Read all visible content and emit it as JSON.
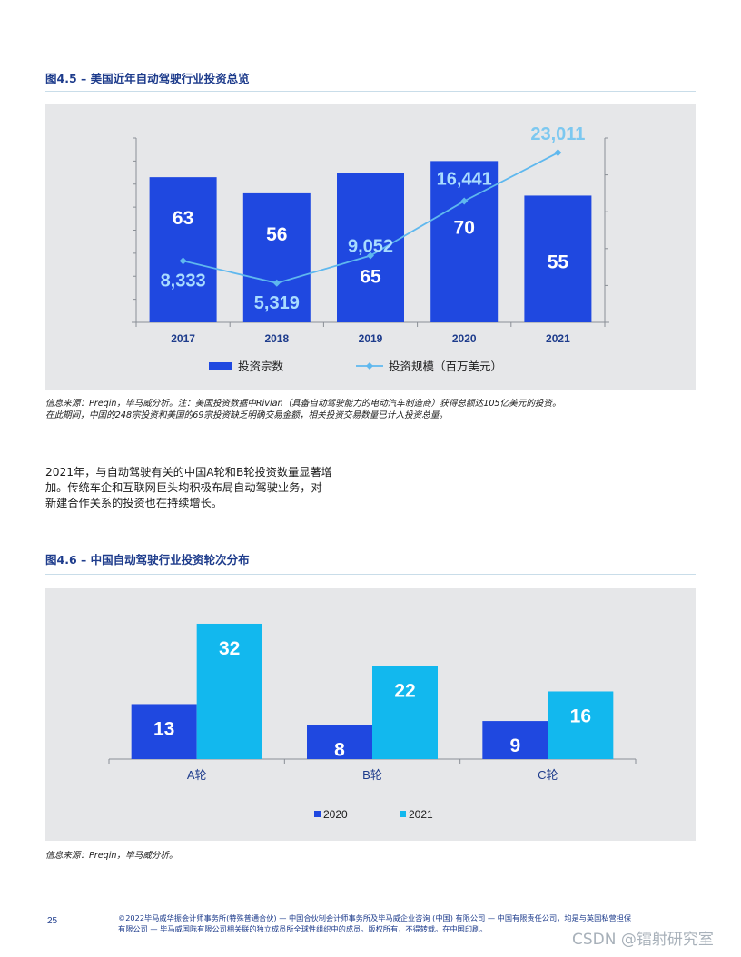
{
  "figure1": {
    "title": "图4.5 – 美国近年自动驾驶行业投资总览",
    "note_lines": [
      "信息来源：Preqin，毕马威分析。注：美国投资数据中Rivian（具备自动驾驶能力的电动汽车制造商）获得总额达105亿美元的投资。",
      "在此期间，中国的248宗投资和美国的69宗投资缺乏明确交易金额，相关投资交易数量已计入投资总量。"
    ],
    "colors": {
      "bar": "#1f48e0",
      "line": "#5fb8ee",
      "bar_label": "#ffffff",
      "line_label_on_bar": "#a9dcff",
      "line_label_above": "#7cc8f0"
    }
  },
  "body": {
    "lines": [
      "2021年，与自动驾驶有关的中国A轮和B轮投资数量显著增",
      "加。传统车企和互联网巨头均积极布局自动驾驶业务，对",
      "新建合作关系的投资也在持续增长。"
    ]
  },
  "figure2": {
    "title": "图4.6 – 中国自动驾驶行业投资轮次分布",
    "note": "信息来源：Preqin，毕马威分析。",
    "colors": {
      "s2020": "#1f48e0",
      "s2021": "#12b8ee"
    }
  },
  "footer": {
    "page": "25",
    "lines": [
      "©2022毕马威华振会计师事务所(特殊普通合伙) — 中国合伙制会计师事务所及毕马威企业咨询 (中国) 有限公司 — 中国有限责任公司，均是与英国私营担保",
      "有限公司 — 毕马威国际有限公司相关联的独立成员所全球性组织中的成员。版权所有，不得转载。在中国印刷。"
    ]
  },
  "watermark": "CSDN @镭射研究室",
  "chart_data": [
    {
      "type": "bar+line",
      "categories": [
        "2017",
        "2018",
        "2019",
        "2020",
        "2021"
      ],
      "series": [
        {
          "name": "投资宗数",
          "type": "bar",
          "values": [
            63,
            56,
            65,
            70,
            55
          ]
        },
        {
          "name": "投资规模（百万美元）",
          "type": "line",
          "values": [
            8333,
            5319,
            9052,
            16441,
            23011
          ],
          "labels": [
            "8,333",
            "5,319",
            "9,052",
            "16,441",
            "23,011"
          ]
        }
      ],
      "bar_ylim": [
        0,
        80
      ],
      "line_ylim": [
        0,
        25000
      ],
      "legend": "bottom-center",
      "grid": false
    },
    {
      "type": "bar",
      "categories": [
        "A轮",
        "B轮",
        "C轮"
      ],
      "series": [
        {
          "name": "2020",
          "values": [
            13,
            8,
            9
          ]
        },
        {
          "name": "2021",
          "values": [
            32,
            22,
            16
          ]
        }
      ],
      "ylim": [
        0,
        35
      ],
      "legend": "bottom-center",
      "grid": false
    }
  ]
}
